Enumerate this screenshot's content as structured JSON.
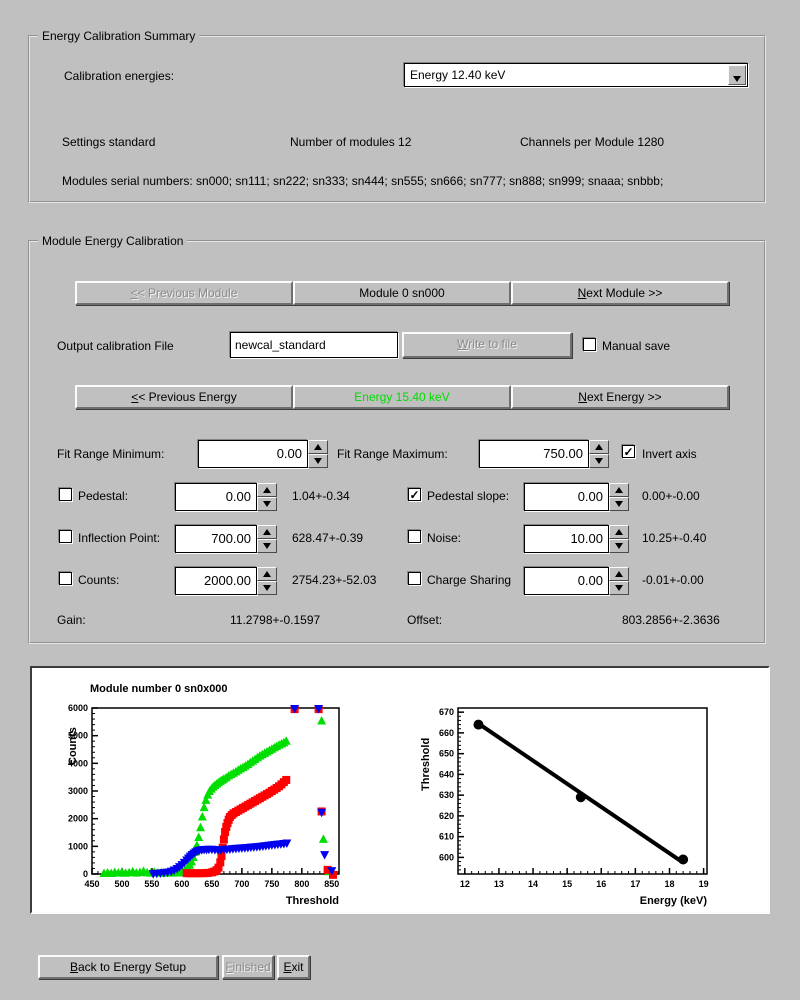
{
  "colors": {
    "window_bg": "#c0c0c0",
    "active_energy_text": "#00dd00",
    "series_green": "#00dd00",
    "series_red": "#ff0000",
    "series_blue": "#0000ee"
  },
  "summary": {
    "title": "Energy Calibration Summary",
    "calibration_energies_label": "Calibration energies:",
    "energy_dropdown_value": "Energy 12.40 keV",
    "settings": "Settings standard",
    "num_modules": "Number of modules 12",
    "channels": "Channels per Module 1280",
    "serials": "Modules serial numbers: sn000; sn111; sn222; sn333; sn444; sn555; sn666; sn777; sn888; sn999; snaaa; snbbb;"
  },
  "module_cal": {
    "title": "Module Energy Calibration",
    "prev_module": {
      "text": "<< Previous Module",
      "accel": 0,
      "disabled": true
    },
    "module_button": {
      "text": "Module 0 sn000",
      "disabled": false
    },
    "next_module": {
      "text": "Next Module >>",
      "accel": 0,
      "disabled": false
    },
    "output_file_label": "Output calibration File",
    "output_file_value": "newcal_standard",
    "write_button": {
      "text": "Write to file",
      "accel": 0,
      "disabled": true
    },
    "manual_save": {
      "label": "Manual save",
      "checked": false
    },
    "prev_energy": {
      "text": "<< Previous Energy",
      "accel": 0,
      "disabled": false
    },
    "energy_button": {
      "text": "Energy 15.40 keV",
      "color": "#00dd00",
      "disabled": false
    },
    "next_energy": {
      "text": "Next Energy >>",
      "accel": 0,
      "disabled": false
    },
    "fit_min": {
      "label": "Fit Range Minimum:",
      "value": "0.00"
    },
    "fit_max": {
      "label": "Fit Range Maximum:",
      "value": "750.00"
    },
    "invert_axis": {
      "label": "Invert axis",
      "checked": true
    },
    "params": {
      "pedestal": {
        "label": "Pedestal:",
        "checked": false,
        "value": "0.00",
        "result": "1.04+-0.34"
      },
      "pedestal_slope": {
        "label": "Pedestal slope:",
        "checked": true,
        "value": "0.00",
        "result": "0.00+-0.00"
      },
      "inflection": {
        "label": "Inflection Point:",
        "checked": false,
        "value": "700.00",
        "result": "628.47+-0.39"
      },
      "noise": {
        "label": "Noise:",
        "checked": false,
        "value": "10.00",
        "result": "10.25+-0.40"
      },
      "counts": {
        "label": "Counts:",
        "checked": false,
        "value": "2000.00",
        "result": "2754.23+-52.03"
      },
      "charge_sharing": {
        "label": "Charge Sharing",
        "checked": false,
        "value": "0.00",
        "result": "-0.01+-0.00"
      }
    },
    "gain_label": "Gain:",
    "gain_value": "11.2798+-0.1597",
    "offset_label": "Offset:",
    "offset_value": "803.2856+-2.3636"
  },
  "footer": {
    "back": {
      "text": "Back to Energy Setup",
      "accel": 0,
      "disabled": false
    },
    "finished": {
      "text": "Finished",
      "accel": 0,
      "disabled": true
    },
    "exit": {
      "text": "Exit",
      "accel": 0,
      "disabled": false
    }
  },
  "chart_data": [
    {
      "type": "scatter",
      "title": "Module number 0 sn0x000",
      "xlabel": "Threshold",
      "ylabel": "Counts",
      "xlim": [
        450,
        862
      ],
      "ylim": [
        0,
        6000
      ],
      "xticks": [
        450,
        500,
        550,
        600,
        650,
        700,
        750,
        800,
        850
      ],
      "yticks": [
        0,
        1000,
        2000,
        3000,
        4000,
        5000,
        6000
      ],
      "x_minor": 10,
      "y_minor": 200,
      "grid": false,
      "legend": "none",
      "series": [
        {
          "name": "scurve-green",
          "marker": "triangle-up",
          "color": "#00dd00",
          "points": [
            [
              470,
              20
            ],
            [
              476,
              35
            ],
            [
              482,
              20
            ],
            [
              488,
              55
            ],
            [
              494,
              30
            ],
            [
              500,
              70
            ],
            [
              506,
              25
            ],
            [
              512,
              45
            ],
            [
              518,
              80
            ],
            [
              524,
              30
            ],
            [
              530,
              55
            ],
            [
              536,
              95
            ],
            [
              542,
              40
            ],
            [
              548,
              25
            ],
            [
              554,
              60
            ],
            [
              560,
              35
            ],
            [
              566,
              50
            ],
            [
              572,
              25
            ],
            [
              578,
              45
            ],
            [
              584,
              30
            ],
            [
              590,
              55
            ],
            [
              595,
              35
            ],
            [
              600,
              70
            ],
            [
              604,
              110
            ],
            [
              607,
              160
            ],
            [
              610,
              230
            ],
            [
              613,
              320
            ],
            [
              616,
              440
            ],
            [
              619,
              590
            ],
            [
              622,
              790
            ],
            [
              625,
              1030
            ],
            [
              628,
              1320
            ],
            [
              631,
              1670
            ],
            [
              634,
              2060
            ],
            [
              637,
              2400
            ],
            [
              640,
              2660
            ],
            [
              643,
              2850
            ],
            [
              646,
              2980
            ],
            [
              649,
              3070
            ],
            [
              652,
              3140
            ],
            [
              655,
              3200
            ],
            [
              658,
              3250
            ],
            [
              661,
              3300
            ],
            [
              664,
              3350
            ],
            [
              667,
              3390
            ],
            [
              670,
              3430
            ],
            [
              674,
              3480
            ],
            [
              678,
              3540
            ],
            [
              682,
              3590
            ],
            [
              686,
              3640
            ],
            [
              690,
              3690
            ],
            [
              694,
              3750
            ],
            [
              698,
              3800
            ],
            [
              702,
              3850
            ],
            [
              706,
              3900
            ],
            [
              710,
              3960
            ],
            [
              714,
              4020
            ],
            [
              718,
              4080
            ],
            [
              722,
              4140
            ],
            [
              726,
              4200
            ],
            [
              730,
              4260
            ],
            [
              734,
              4310
            ],
            [
              738,
              4360
            ],
            [
              742,
              4410
            ],
            [
              746,
              4460
            ],
            [
              750,
              4510
            ],
            [
              754,
              4560
            ],
            [
              758,
              4610
            ],
            [
              762,
              4660
            ],
            [
              766,
              4700
            ],
            [
              770,
              4740
            ],
            [
              774,
              4800
            ],
            [
              833,
              5530
            ],
            [
              836,
              1250
            ],
            [
              845,
              80
            ]
          ]
        },
        {
          "name": "scurve-red",
          "marker": "square",
          "color": "#ff0000",
          "points": [
            [
              608,
              30
            ],
            [
              614,
              25
            ],
            [
              620,
              30
            ],
            [
              626,
              25
            ],
            [
              632,
              30
            ],
            [
              638,
              30
            ],
            [
              644,
              40
            ],
            [
              650,
              60
            ],
            [
              654,
              90
            ],
            [
              658,
              140
            ],
            [
              661,
              230
            ],
            [
              664,
              420
            ],
            [
              666,
              650
            ],
            [
              668,
              950
            ],
            [
              670,
              1250
            ],
            [
              672,
              1520
            ],
            [
              674,
              1700
            ],
            [
              676,
              1840
            ],
            [
              678,
              1960
            ],
            [
              680,
              2060
            ],
            [
              683,
              2130
            ],
            [
              686,
              2190
            ],
            [
              690,
              2240
            ],
            [
              694,
              2290
            ],
            [
              698,
              2340
            ],
            [
              702,
              2390
            ],
            [
              706,
              2440
            ],
            [
              710,
              2490
            ],
            [
              714,
              2540
            ],
            [
              718,
              2590
            ],
            [
              722,
              2640
            ],
            [
              726,
              2690
            ],
            [
              730,
              2740
            ],
            [
              734,
              2790
            ],
            [
              738,
              2840
            ],
            [
              742,
              2890
            ],
            [
              746,
              2940
            ],
            [
              750,
              3000
            ],
            [
              754,
              3050
            ],
            [
              758,
              3110
            ],
            [
              762,
              3170
            ],
            [
              766,
              3240
            ],
            [
              770,
              3320
            ],
            [
              774,
              3400
            ],
            [
              788,
              5960
            ],
            [
              828,
              5960
            ],
            [
              833,
              2260
            ],
            [
              843,
              150
            ],
            [
              852,
              -30
            ]
          ]
        },
        {
          "name": "scurve-blue",
          "marker": "triangle-down",
          "color": "#0000ee",
          "points": [
            [
              552,
              15
            ],
            [
              558,
              25
            ],
            [
              564,
              35
            ],
            [
              570,
              50
            ],
            [
              576,
              70
            ],
            [
              582,
              100
            ],
            [
              587,
              145
            ],
            [
              592,
              200
            ],
            [
              596,
              265
            ],
            [
              600,
              340
            ],
            [
              604,
              420
            ],
            [
              608,
              505
            ],
            [
              611,
              580
            ],
            [
              614,
              645
            ],
            [
              617,
              705
            ],
            [
              620,
              755
            ],
            [
              623,
              800
            ],
            [
              626,
              835
            ],
            [
              629,
              860
            ],
            [
              633,
              875
            ],
            [
              637,
              885
            ],
            [
              641,
              890
            ],
            [
              645,
              893
            ],
            [
              650,
              895
            ],
            [
              655,
              880
            ],
            [
              660,
              870
            ],
            [
              665,
              880
            ],
            [
              670,
              890
            ],
            [
              675,
              898
            ],
            [
              680,
              905
            ],
            [
              685,
              915
            ],
            [
              690,
              925
            ],
            [
              695,
              935
            ],
            [
              700,
              943
            ],
            [
              705,
              950
            ],
            [
              710,
              960
            ],
            [
              715,
              970
            ],
            [
              720,
              980
            ],
            [
              725,
              990
            ],
            [
              730,
              1000
            ],
            [
              735,
              1012
            ],
            [
              740,
              1025
            ],
            [
              745,
              1040
            ],
            [
              750,
              1052
            ],
            [
              755,
              1065
            ],
            [
              760,
              1078
            ],
            [
              765,
              1090
            ],
            [
              770,
              1103
            ],
            [
              775,
              1120
            ],
            [
              788,
              5980
            ],
            [
              828,
              5980
            ],
            [
              833,
              2230
            ],
            [
              838,
              700
            ],
            [
              850,
              120
            ]
          ]
        }
      ]
    },
    {
      "type": "line",
      "title": "",
      "xlabel": "Energy (keV)",
      "ylabel": "Threshold",
      "xlim": [
        11.8,
        19.1
      ],
      "ylim": [
        592,
        672
      ],
      "xticks": [
        12,
        13,
        14,
        15,
        16,
        17,
        18,
        19
      ],
      "yticks": [
        600,
        610,
        620,
        630,
        640,
        650,
        660,
        670
      ],
      "x_minor": 0.2,
      "y_minor": 2,
      "grid": false,
      "legend": "none",
      "series": [
        {
          "name": "calibration-fit-line",
          "marker": "none",
          "line": true,
          "line_width": 4,
          "color": "#000000",
          "points": [
            [
              12.4,
              664.5
            ],
            [
              18.4,
              597.5
            ]
          ]
        },
        {
          "name": "calibration-points",
          "marker": "circle",
          "color": "#000000",
          "points": [
            [
              12.4,
              664
            ],
            [
              15.4,
              629
            ],
            [
              18.4,
              599
            ]
          ]
        }
      ]
    }
  ]
}
